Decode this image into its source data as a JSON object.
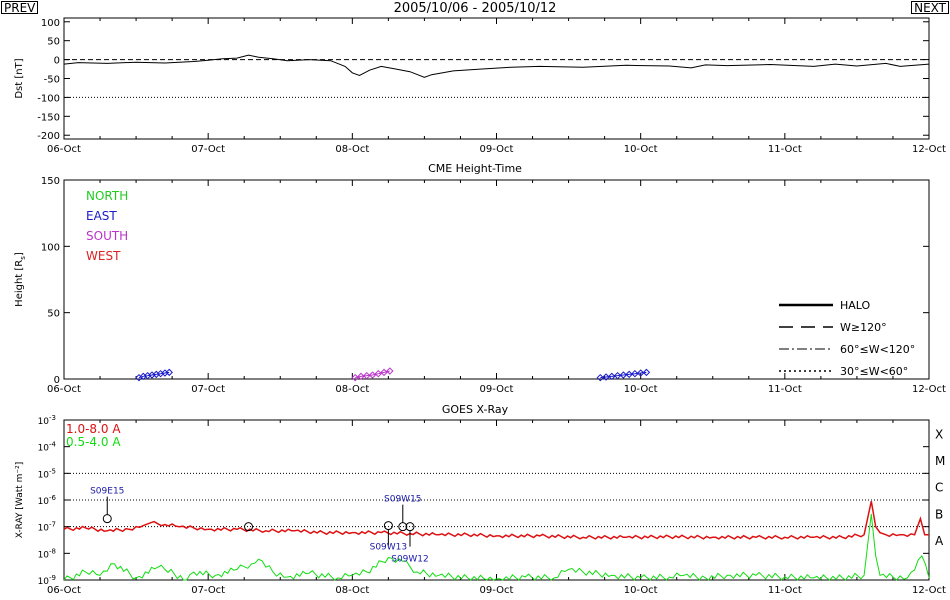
{
  "page": {
    "title": "2005/10/06 - 2005/10/12",
    "prev_label": "PREV",
    "next_label": "NEXT"
  },
  "colors": {
    "north": "#22cc22",
    "east": "#1a1acc",
    "south": "#bb33cc",
    "west": "#dd2222",
    "xray_long": "#dd1111",
    "xray_short": "#11dd11",
    "flare_label": "#1a1aaa"
  },
  "x_axis": {
    "ticks": [
      "06-Oct",
      "07-Oct",
      "08-Oct",
      "09-Oct",
      "10-Oct",
      "11-Oct",
      "12-Oct"
    ],
    "range_days": [
      0,
      6
    ]
  },
  "chart_data": [
    {
      "type": "line",
      "ylabel": "Dst [nT]",
      "ylim": [
        -210,
        110
      ],
      "yticks": [
        "100",
        "50",
        "0",
        "-50",
        "-100",
        "-150",
        "-200"
      ],
      "reference_lines": [
        {
          "value": 0,
          "style": "dashed"
        },
        {
          "value": -100,
          "style": "dotted"
        }
      ],
      "series": [
        {
          "x": [
            0,
            0.1,
            0.3,
            0.5,
            0.7,
            0.9,
            1.0,
            1.1,
            1.2,
            1.28,
            1.35,
            1.45,
            1.55,
            1.7,
            1.85,
            1.95,
            2.0,
            2.05,
            2.12,
            2.2,
            2.3,
            2.4,
            2.5,
            2.55,
            2.7,
            2.9,
            3.1,
            3.3,
            3.6,
            3.9,
            4.2,
            4.35,
            4.45,
            4.6,
            4.9,
            5.2,
            5.35,
            5.5,
            5.7,
            5.8,
            5.9,
            6.0
          ],
          "y": [
            -12,
            -8,
            -10,
            -7,
            -9,
            -5,
            -2,
            2,
            4,
            12,
            6,
            2,
            -3,
            0,
            -3,
            -18,
            -35,
            -42,
            -28,
            -18,
            -25,
            -32,
            -47,
            -40,
            -30,
            -25,
            -20,
            -18,
            -20,
            -15,
            -17,
            -22,
            -14,
            -16,
            -13,
            -18,
            -12,
            -17,
            -10,
            -18,
            -15,
            -12
          ]
        }
      ]
    },
    {
      "type": "scatter",
      "title": "CME Height-Time",
      "ylabel": "Height [Rs]",
      "ylim": [
        0,
        150
      ],
      "yticks": [
        "150",
        "100",
        "50",
        "0"
      ],
      "legend_left": [
        "NORTH",
        "EAST",
        "SOUTH",
        "WEST"
      ],
      "legend_right": [
        "HALO",
        "W≥120°",
        "60°≤W<120°",
        "30°≤W<60°"
      ],
      "series": [
        {
          "name": "EAST",
          "x": [
            0.52,
            0.55,
            0.58,
            0.61,
            0.64,
            0.67,
            0.7,
            0.73
          ],
          "y": [
            1,
            2,
            2.5,
            3,
            3.5,
            4,
            4.5,
            5
          ]
        },
        {
          "name": "SOUTH",
          "x": [
            2.02,
            2.06,
            2.1,
            2.14,
            2.18,
            2.22,
            2.26
          ],
          "y": [
            1,
            2,
            2.5,
            3,
            4,
            5,
            6
          ]
        },
        {
          "name": "EAST",
          "x": [
            3.72,
            3.76,
            3.8,
            3.84,
            3.88,
            3.92,
            3.96,
            4.0,
            4.04
          ],
          "y": [
            1,
            1.5,
            2,
            2.5,
            3,
            3.5,
            4,
            4.5,
            5
          ]
        }
      ]
    },
    {
      "type": "line",
      "title": "GOES X-Ray",
      "ylabel": "X-RAY [Watt m⁻²]",
      "ylim": [
        1e-09,
        0.001
      ],
      "yscale": "log",
      "ytick_exponents": [
        -3,
        -4,
        -5,
        -6,
        -7,
        -8,
        -9
      ],
      "class_labels": [
        "X",
        "M",
        "C",
        "B",
        "A"
      ],
      "legend": [
        "1.0-8.0 A",
        "0.5-4.0 A"
      ],
      "series": [
        {
          "name": "1.0-8.0 A",
          "x": [
            0,
            0.15,
            0.3,
            0.45,
            0.55,
            0.6,
            0.7,
            0.8,
            0.9,
            1.0,
            1.2,
            1.4,
            1.6,
            1.8,
            2.0,
            2.2,
            2.4,
            2.6,
            2.8,
            3.0,
            3.3,
            3.6,
            3.9,
            4.2,
            4.5,
            4.8,
            5.0,
            5.2,
            5.4,
            5.55,
            5.6,
            5.63,
            5.66,
            5.7,
            5.8,
            5.9,
            5.94,
            5.97,
            6.0
          ],
          "y": [
            8e-08,
            9e-08,
            7e-08,
            8e-08,
            1.1e-07,
            1.4e-07,
            1.2e-07,
            1e-07,
            9e-08,
            8e-08,
            8e-08,
            7e-08,
            7e-08,
            6e-08,
            6e-08,
            6e-08,
            5.5e-08,
            5e-08,
            5e-08,
            4.5e-08,
            4.5e-08,
            4e-08,
            4e-08,
            4.2e-08,
            4e-08,
            4e-08,
            4e-08,
            4e-08,
            4e-08,
            5e-08,
            9e-07,
            1e-07,
            6e-08,
            5e-08,
            5e-08,
            5e-08,
            2e-07,
            5e-08,
            5e-08
          ]
        },
        {
          "name": "0.5-4.0 A",
          "x": [
            0,
            0.15,
            0.25,
            0.35,
            0.5,
            0.65,
            0.7,
            0.85,
            0.9,
            1.05,
            1.2,
            1.3,
            1.35,
            1.45,
            1.55,
            1.7,
            1.9,
            2.0,
            2.1,
            2.25,
            2.35,
            2.45,
            2.6,
            2.8,
            3.0,
            3.2,
            3.4,
            3.5,
            3.6,
            3.8,
            4.0,
            4.2,
            4.3,
            4.45,
            4.6,
            4.8,
            5.0,
            5.2,
            5.4,
            5.55,
            5.6,
            5.63,
            5.66,
            5.75,
            5.85,
            5.95,
            6.0
          ],
          "y": [
            1e-09,
            2e-09,
            1.5e-09,
            4e-09,
            1.2e-09,
            3e-09,
            2.5e-09,
            1e-09,
            2e-09,
            1.5e-09,
            2.5e-09,
            4e-09,
            6e-09,
            2e-09,
            1.3e-09,
            1.8e-09,
            1.2e-09,
            1.5e-09,
            2e-09,
            7e-09,
            5e-09,
            2e-09,
            1.5e-09,
            1.2e-09,
            1.1e-09,
            1.3e-09,
            1.2e-09,
            2.5e-09,
            2e-09,
            1.5e-09,
            1.2e-09,
            1.3e-09,
            1.5e-09,
            1.2e-09,
            1.5e-09,
            1.5e-09,
            1.3e-09,
            1.2e-09,
            1.2e-09,
            1.5e-09,
            3e-07,
            8e-09,
            1.5e-09,
            1.3e-09,
            1.2e-09,
            8e-09,
            1.2e-09
          ]
        }
      ],
      "flares": [
        {
          "x": 0.3,
          "y": 2e-07,
          "label": "S09E15",
          "label_pos": "above"
        },
        {
          "x": 1.28,
          "y": 1e-07,
          "label": ""
        },
        {
          "x": 2.25,
          "y": 1.1e-07,
          "label": "S09W13",
          "label_pos": "below"
        },
        {
          "x": 2.35,
          "y": 1e-07,
          "label": "S09W15",
          "label_pos": "above"
        },
        {
          "x": 2.4,
          "y": 1e-07,
          "label": "S09W12",
          "label_pos": "below"
        }
      ]
    }
  ]
}
